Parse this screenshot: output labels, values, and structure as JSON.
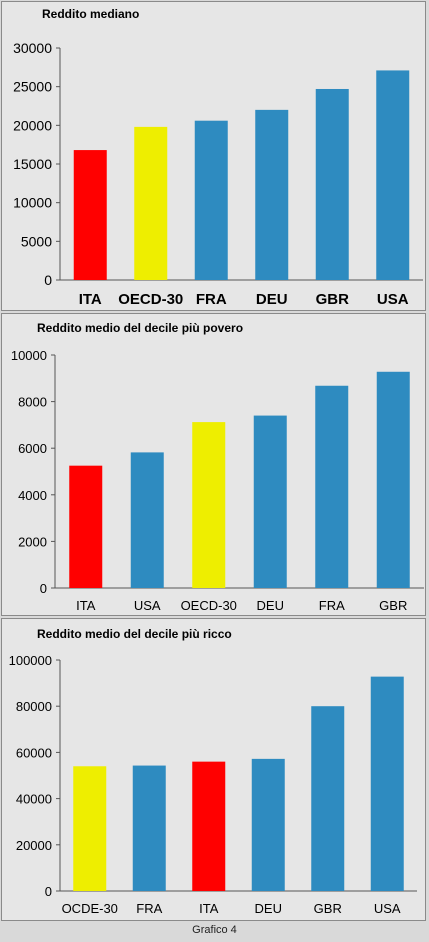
{
  "chart_data": [
    {
      "type": "bar",
      "title": "Reddito mediano",
      "categories": [
        "ITA",
        "OECD-30",
        "FRA",
        "DEU",
        "GBR",
        "USA"
      ],
      "values": [
        16800,
        19800,
        20600,
        22000,
        24700,
        27100
      ],
      "bar_colors": [
        "#ff0000",
        "#eeee00",
        "#2e8bc0",
        "#2e8bc0",
        "#2e8bc0",
        "#2e8bc0"
      ],
      "ylim": [
        0,
        30000
      ],
      "yticks": [
        0,
        5000,
        10000,
        15000,
        20000,
        25000,
        30000
      ],
      "grid": false
    },
    {
      "type": "bar",
      "title": "Reddito medio del decile più povero",
      "categories": [
        "ITA",
        "USA",
        "OECD-30",
        "DEU",
        "FRA",
        "GBR"
      ],
      "values": [
        5250,
        5820,
        7120,
        7400,
        8680,
        9280
      ],
      "bar_colors": [
        "#ff0000",
        "#2e8bc0",
        "#eeee00",
        "#2e8bc0",
        "#2e8bc0",
        "#2e8bc0"
      ],
      "ylim": [
        0,
        10000
      ],
      "yticks": [
        0,
        2000,
        4000,
        6000,
        8000,
        10000
      ],
      "grid": false
    },
    {
      "type": "bar",
      "title": "Reddito medio del decile più ricco",
      "categories": [
        "OCDE-30",
        "FRA",
        "ITA",
        "DEU",
        "GBR",
        "USA"
      ],
      "values": [
        54000,
        54300,
        56000,
        57200,
        80000,
        92800
      ],
      "bar_colors": [
        "#eeee00",
        "#2e8bc0",
        "#ff0000",
        "#2e8bc0",
        "#2e8bc0",
        "#2e8bc0"
      ],
      "ylim": [
        0,
        100000
      ],
      "yticks": [
        0,
        20000,
        40000,
        60000,
        80000,
        100000
      ],
      "grid": false
    }
  ],
  "caption": "Grafico 4"
}
